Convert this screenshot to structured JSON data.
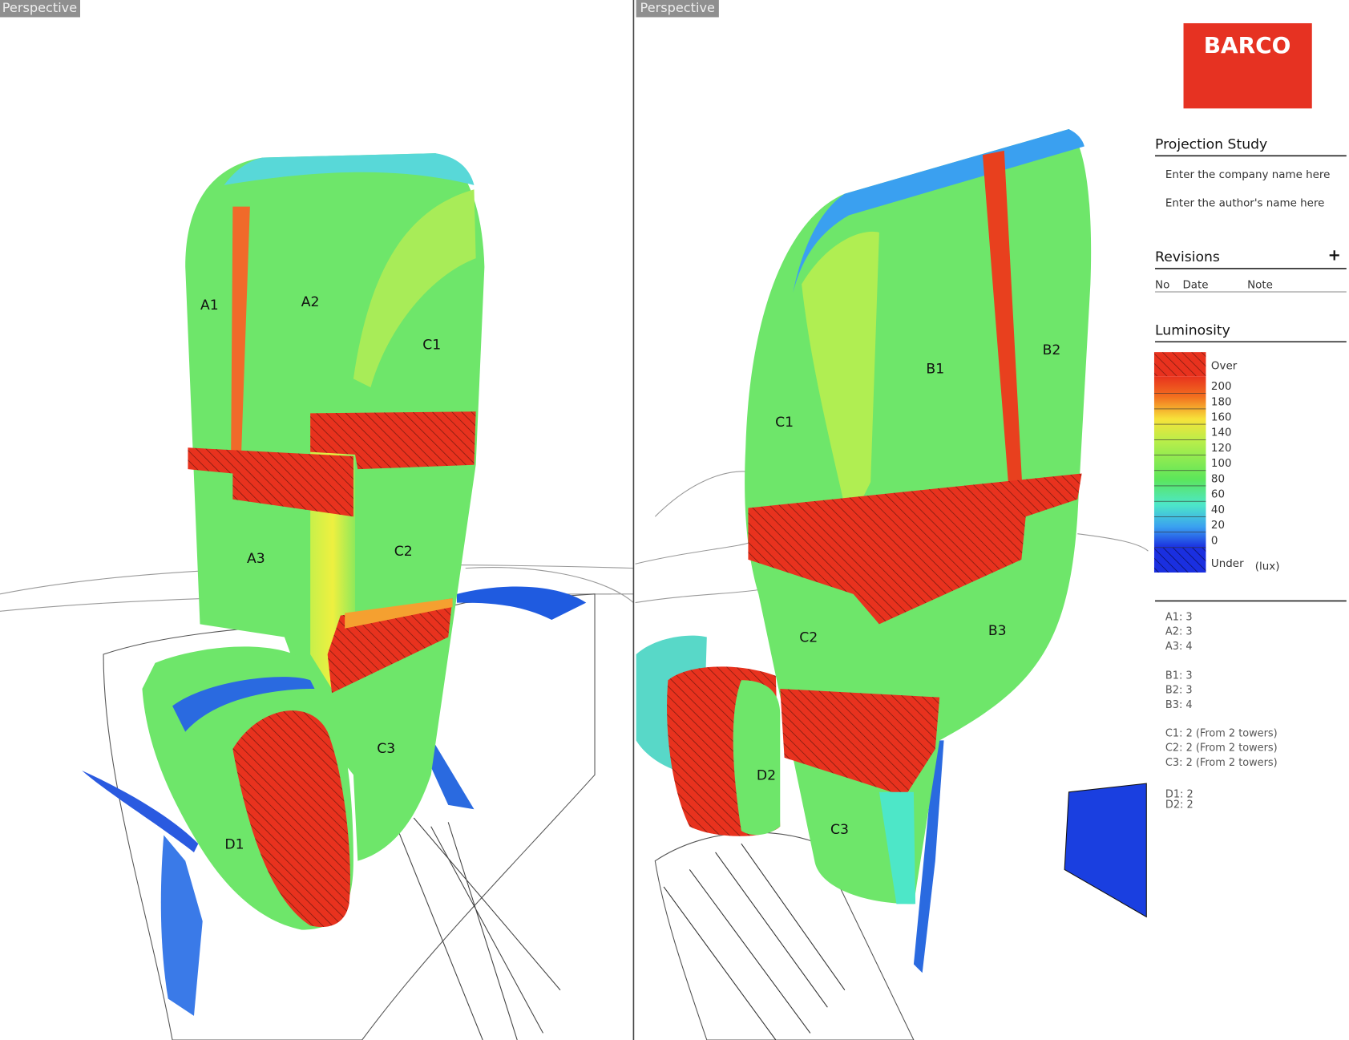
{
  "viewports": [
    {
      "label": "Perspective",
      "zones": [
        "A1",
        "A2",
        "C1",
        "A3",
        "C2",
        "C3",
        "D1"
      ]
    },
    {
      "label": "Perspective",
      "zones": [
        "B1",
        "B2",
        "C1",
        "C2",
        "B3",
        "D2",
        "C3"
      ]
    }
  ],
  "panel": {
    "logo": "BARCO",
    "title": "Projection Study",
    "company": "Enter the company name here",
    "author": "Enter the author's name here",
    "revisions": {
      "title": "Revisions",
      "add": "+",
      "columns": [
        "No",
        "Date",
        "Note"
      ]
    },
    "luminosity": {
      "title": "Luminosity",
      "over": "Over",
      "ticks": [
        200,
        180,
        160,
        140,
        120,
        100,
        80,
        60,
        40,
        20,
        0
      ],
      "under": "Under",
      "unit": "(lux)"
    },
    "notes": [
      [
        "A1: 3",
        "A2: 3",
        "A3: 4"
      ],
      [
        "B1: 3",
        "B2: 3",
        "B3: 4"
      ],
      [
        "C1: 2 (From 2 towers)",
        "C2: 2 (From 2 towers)",
        "C3: 2 (From 2 towers)"
      ],
      [
        "D1: 2",
        "D2: 2"
      ]
    ]
  }
}
